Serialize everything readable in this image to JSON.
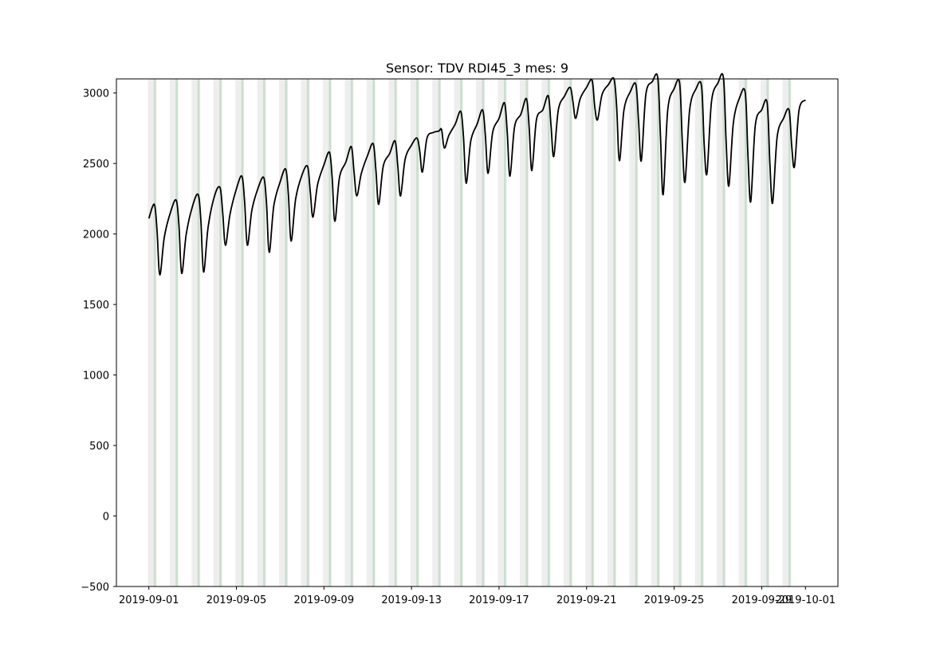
{
  "chart_data": {
    "type": "line",
    "title": "Sensor: TDV RDI45_3 mes: 9",
    "xlabel": "",
    "ylabel": "",
    "xlim": [
      "2019-09-01",
      "2019-10-01"
    ],
    "ylim": [
      -500,
      3100
    ],
    "grid": false,
    "legend": "none",
    "line_color": "#000000",
    "shade_colors": {
      "light_gray": "#d9d9d9",
      "light_green": "#b5d3bb"
    },
    "x_ticks": [
      "2019-09-01",
      "2019-09-05",
      "2019-09-09",
      "2019-09-13",
      "2019-09-17",
      "2019-09-21",
      "2019-09-25",
      "2019-09-29",
      "2019-10-01"
    ],
    "y_ticks": [
      -500,
      0,
      500,
      1000,
      1500,
      2000,
      2500,
      3000
    ],
    "series": [
      {
        "x": [
          "2019-09-01T00:00",
          "2019-09-01T06:00",
          "2019-09-01T09:00",
          "2019-09-01T12:00",
          "2019-09-01T17:00",
          "2019-09-02T00:00",
          "2019-09-02T06:00",
          "2019-09-02T09:00",
          "2019-09-02T12:00",
          "2019-09-02T17:00",
          "2019-09-03T00:00",
          "2019-09-03T06:00",
          "2019-09-03T09:00",
          "2019-09-03T12:00",
          "2019-09-03T17:00",
          "2019-09-04T00:00",
          "2019-09-04T06:00",
          "2019-09-04T09:00",
          "2019-09-04T12:00",
          "2019-09-04T17:00",
          "2019-09-05T00:00",
          "2019-09-05T06:00",
          "2019-09-05T09:00",
          "2019-09-05T12:00",
          "2019-09-05T17:00",
          "2019-09-06T00:00",
          "2019-09-06T06:00",
          "2019-09-06T09:00",
          "2019-09-06T12:00",
          "2019-09-06T17:00",
          "2019-09-07T00:00",
          "2019-09-07T06:00",
          "2019-09-07T09:00",
          "2019-09-07T12:00",
          "2019-09-07T17:00",
          "2019-09-08T00:00",
          "2019-09-08T06:00",
          "2019-09-08T09:00",
          "2019-09-08T12:00",
          "2019-09-08T17:00",
          "2019-09-09T00:00",
          "2019-09-09T06:00",
          "2019-09-09T09:00",
          "2019-09-09T12:00",
          "2019-09-09T17:00",
          "2019-09-10T00:00",
          "2019-09-10T06:00",
          "2019-09-10T09:00",
          "2019-09-10T12:00",
          "2019-09-10T17:00",
          "2019-09-11T00:00",
          "2019-09-11T06:00",
          "2019-09-11T09:00",
          "2019-09-11T12:00",
          "2019-09-11T17:00",
          "2019-09-12T00:00",
          "2019-09-12T06:00",
          "2019-09-12T09:00",
          "2019-09-12T12:00",
          "2019-09-12T17:00",
          "2019-09-13T00:00",
          "2019-09-13T06:00",
          "2019-09-13T09:00",
          "2019-09-13T12:00",
          "2019-09-13T17:00",
          "2019-09-14T00:00",
          "2019-09-14T06:00",
          "2019-09-14T09:00",
          "2019-09-14T12:00",
          "2019-09-14T17:00",
          "2019-09-15T00:00",
          "2019-09-15T06:00",
          "2019-09-15T09:00",
          "2019-09-15T12:00",
          "2019-09-15T17:00",
          "2019-09-16T00:00",
          "2019-09-16T06:00",
          "2019-09-16T09:00",
          "2019-09-16T12:00",
          "2019-09-16T17:00",
          "2019-09-17T00:00",
          "2019-09-17T06:00",
          "2019-09-17T09:00",
          "2019-09-17T12:00",
          "2019-09-17T17:00",
          "2019-09-18T00:00",
          "2019-09-18T06:00",
          "2019-09-18T09:00",
          "2019-09-18T12:00",
          "2019-09-18T17:00",
          "2019-09-19T00:00",
          "2019-09-19T06:00",
          "2019-09-19T09:00",
          "2019-09-19T12:00",
          "2019-09-19T17:00",
          "2019-09-20T00:00",
          "2019-09-20T06:00",
          "2019-09-20T09:00",
          "2019-09-20T12:00",
          "2019-09-20T17:00",
          "2019-09-21T00:00",
          "2019-09-21T06:00",
          "2019-09-21T09:00",
          "2019-09-21T12:00",
          "2019-09-21T17:00",
          "2019-09-22T00:00",
          "2019-09-22T06:00",
          "2019-09-22T09:00",
          "2019-09-22T12:00",
          "2019-09-22T17:00",
          "2019-09-23T00:00",
          "2019-09-23T06:00",
          "2019-09-23T09:00",
          "2019-09-23T12:00",
          "2019-09-23T17:00",
          "2019-09-24T00:00",
          "2019-09-24T06:00",
          "2019-09-24T09:00",
          "2019-09-24T12:00",
          "2019-09-24T17:00",
          "2019-09-25T00:00",
          "2019-09-25T06:00",
          "2019-09-25T09:00",
          "2019-09-25T12:00",
          "2019-09-25T17:00",
          "2019-09-26T00:00",
          "2019-09-26T06:00",
          "2019-09-26T09:00",
          "2019-09-26T12:00",
          "2019-09-26T17:00",
          "2019-09-27T00:00",
          "2019-09-27T06:00",
          "2019-09-27T09:00",
          "2019-09-27T12:00",
          "2019-09-27T17:00",
          "2019-09-28T00:00",
          "2019-09-28T06:00",
          "2019-09-28T09:00",
          "2019-09-28T12:00",
          "2019-09-28T17:00",
          "2019-09-29T00:00",
          "2019-09-29T06:00",
          "2019-09-29T09:00",
          "2019-09-29T12:00",
          "2019-09-29T17:00",
          "2019-09-30T00:00",
          "2019-09-30T06:00",
          "2019-09-30T09:00",
          "2019-09-30T12:00",
          "2019-09-30T17:00",
          "2019-10-01T00:00"
        ],
        "y": [
          2110,
          2210,
          2020,
          1710,
          1980,
          2160,
          2240,
          2060,
          1720,
          2000,
          2200,
          2280,
          2100,
          1730,
          2050,
          2270,
          2330,
          2150,
          1920,
          2140,
          2320,
          2410,
          2230,
          1920,
          2170,
          2330,
          2400,
          2220,
          1870,
          2200,
          2370,
          2460,
          2280,
          1950,
          2250,
          2420,
          2480,
          2300,
          2120,
          2350,
          2490,
          2580,
          2400,
          2090,
          2400,
          2510,
          2620,
          2440,
          2270,
          2430,
          2560,
          2640,
          2450,
          2210,
          2480,
          2570,
          2660,
          2480,
          2270,
          2530,
          2630,
          2680,
          2590,
          2440,
          2680,
          2720,
          2730,
          2740,
          2610,
          2700,
          2780,
          2870,
          2690,
          2360,
          2660,
          2780,
          2880,
          2700,
          2430,
          2720,
          2820,
          2930,
          2720,
          2410,
          2760,
          2850,
          2960,
          2760,
          2450,
          2810,
          2880,
          2980,
          2770,
          2550,
          2880,
          2980,
          3040,
          2940,
          2820,
          2960,
          3040,
          3090,
          2900,
          2810,
          2990,
          3060,
          3100,
          2900,
          2520,
          2880,
          3010,
          3060,
          2800,
          2520,
          2990,
          3080,
          3110,
          2700,
          2280,
          2880,
          3030,
          3070,
          2650,
          2370,
          2880,
          3030,
          3050,
          2630,
          2430,
          2940,
          3070,
          3110,
          2660,
          2340,
          2790,
          2970,
          3000,
          2550,
          2230,
          2770,
          2880,
          2930,
          2500,
          2220,
          2690,
          2820,
          2880,
          2620,
          2480,
          2880,
          2950
        ]
      }
    ]
  }
}
